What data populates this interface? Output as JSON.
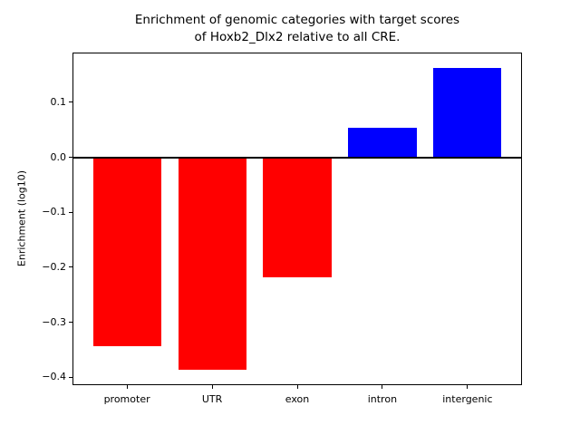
{
  "figure": {
    "title_line1": "Enrichment of genomic categories with target scores",
    "title_line2": "of Hoxb2_Dlx2 relative to all CRE."
  },
  "chart_data": {
    "type": "bar",
    "title": "Enrichment of genomic categories with target scores\nof Hoxb2_Dlx2 relative to all CRE.",
    "xlabel": "",
    "ylabel": "Enrichment (log10)",
    "categories": [
      "promoter",
      "UTR",
      "exon",
      "intron",
      "intergenic"
    ],
    "values": [
      -0.343,
      -0.387,
      -0.219,
      0.054,
      0.163
    ],
    "bar_colors": [
      "#ff0000",
      "#ff0000",
      "#ff0000",
      "#0000ff",
      "#0000ff"
    ],
    "negative_color": "#ff0000",
    "positive_color": "#0000ff",
    "ylim": [
      -0.4145,
      0.1905
    ],
    "xlim": [
      -0.64,
      4.64
    ],
    "yticks": [
      0.1,
      0.0,
      -0.1,
      -0.2,
      -0.3,
      -0.4
    ],
    "ytick_labels": [
      "0.1",
      "0.0",
      "−0.1",
      "−0.2",
      "−0.3",
      "−0.4"
    ],
    "bar_width": 0.8,
    "grid": false,
    "legend": false,
    "zero_line": true,
    "axis_color": "#000000",
    "background_color": "#ffffff"
  }
}
